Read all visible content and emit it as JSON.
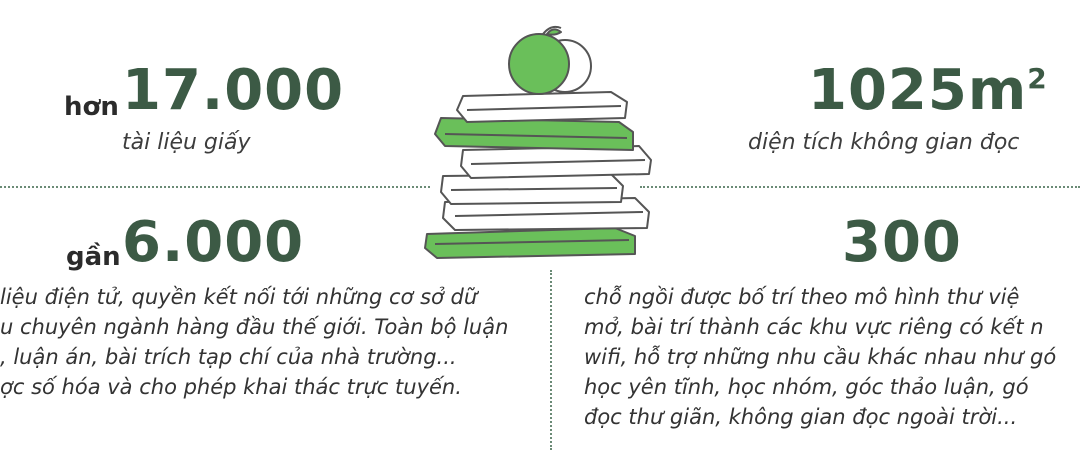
{
  "stat_paper": {
    "prefix": "hơn",
    "value": "17.000",
    "caption": "tài liệu giấy"
  },
  "stat_area": {
    "value": "1025m",
    "unit_sup": "2",
    "caption": "diện tích không gian đọc"
  },
  "stat_digital": {
    "prefix": "gần",
    "value": "6.000",
    "lines": [
      "liệu điện tử, quyền kết nối tới những cơ sở dữ",
      "u chuyên ngành hàng đầu thế giới. Toàn bộ luận",
      ", luận án, bài trích tạp chí của nhà trường...",
      "ợc số hóa và cho phép khai thác trực tuyến."
    ]
  },
  "stat_seats": {
    "value": "300",
    "lines": [
      "chỗ ngồi được bố trí theo mô hình thư việ",
      "mở, bài trí thành các khu vực riêng có kết n",
      "wifi, hỗ trợ những nhu cầu khác nhau như gó",
      "học yên tĩnh, học nhóm, góc thảo luận, gó",
      "đọc thư giãn, không gian đọc ngoài trời..."
    ]
  },
  "illustration": {
    "icon": "books-with-apple-icon",
    "accent": "#6abf5a",
    "dark_green": "#3c5a45"
  }
}
